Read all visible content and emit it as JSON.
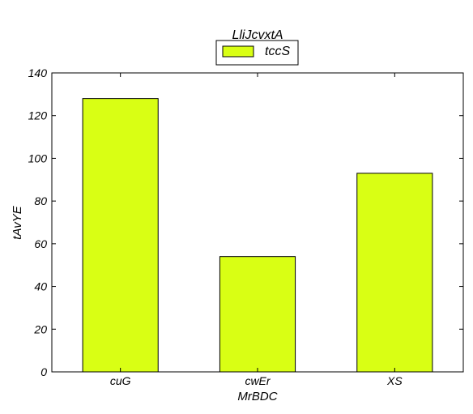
{
  "chart_data": {
    "type": "bar",
    "title": "LliJcvxtA",
    "xlabel": "MrBDC",
    "ylabel": "tAvYE",
    "categories": [
      "cuG",
      "cwEr",
      "XS"
    ],
    "series": [
      {
        "name": "tccS",
        "values": [
          128,
          54,
          93
        ]
      }
    ],
    "ylim": [
      0,
      140
    ],
    "yticks": [
      0,
      20,
      40,
      60,
      80,
      100,
      120,
      140
    ],
    "grid": false,
    "legend_position": "top-center",
    "bar_color": "#d9ff14"
  }
}
